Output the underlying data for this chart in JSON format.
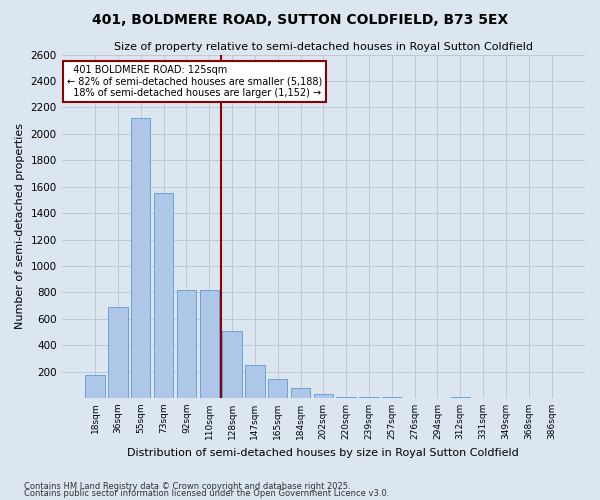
{
  "title": "401, BOLDMERE ROAD, SUTTON COLDFIELD, B73 5EX",
  "subtitle": "Size of property relative to semi-detached houses in Royal Sutton Coldfield",
  "xlabel": "Distribution of semi-detached houses by size in Royal Sutton Coldfield",
  "ylabel": "Number of semi-detached properties",
  "categories": [
    "18sqm",
    "36sqm",
    "55sqm",
    "73sqm",
    "92sqm",
    "110sqm",
    "128sqm",
    "147sqm",
    "165sqm",
    "184sqm",
    "202sqm",
    "220sqm",
    "239sqm",
    "257sqm",
    "276sqm",
    "294sqm",
    "312sqm",
    "331sqm",
    "349sqm",
    "368sqm",
    "386sqm"
  ],
  "values": [
    170,
    690,
    2120,
    1550,
    820,
    820,
    510,
    250,
    140,
    75,
    30,
    10,
    5,
    5,
    0,
    0,
    5,
    0,
    0,
    0,
    0
  ],
  "bar_color": "#aec6e8",
  "bar_edge_color": "#5b9bd5",
  "grid_color": "#c0c8d8",
  "bg_color": "#dce6f0",
  "property_label": "401 BOLDMERE ROAD: 125sqm",
  "pct_smaller": 82,
  "num_smaller": 5188,
  "pct_larger": 18,
  "num_larger": 1152,
  "vline_bin_index": 6,
  "vline_color": "#8b0000",
  "annotation_box_color": "#8b0000",
  "ylim": [
    0,
    2600
  ],
  "yticks": [
    0,
    200,
    400,
    600,
    800,
    1000,
    1200,
    1400,
    1600,
    1800,
    2000,
    2200,
    2400,
    2600
  ],
  "footer1": "Contains HM Land Registry data © Crown copyright and database right 2025.",
  "footer2": "Contains public sector information licensed under the Open Government Licence v3.0."
}
